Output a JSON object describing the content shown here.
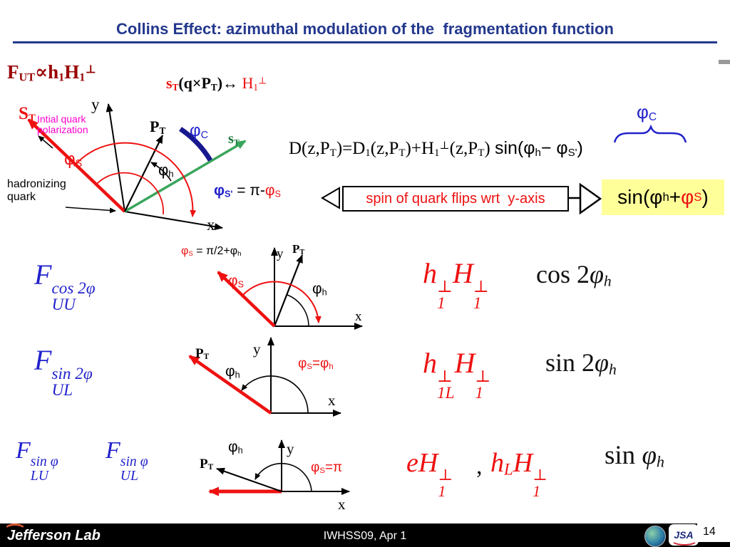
{
  "colors": {
    "navy": "#23388d",
    "red": "#ee1111",
    "dark_red": "#990000",
    "magenta": "#ff00cc",
    "green": "#1e7a3c",
    "blue": "#2222cc",
    "yellow_bg": "#ffff99"
  },
  "title": "Collins Effect: azimuthal modulation of the  fragmentation function",
  "header": {
    "fut": [
      {
        "t": "F"
      },
      {
        "t": "UT",
        "k": "sub"
      },
      {
        "t": "∝"
      },
      {
        "t": "h"
      },
      {
        "t": "1",
        "k": "sub"
      },
      {
        "t": "H"
      },
      {
        "t": "1",
        "k": "sub"
      },
      {
        "t": "⊥",
        "k": "sup"
      }
    ],
    "st_rel": [
      {
        "t": "s",
        "c": "#ee1111"
      },
      {
        "t": "T",
        "k": "sub",
        "c": "#ee1111"
      },
      {
        "t": "(q×P"
      },
      {
        "t": "T",
        "k": "sub"
      },
      {
        "t": ")↔ "
      },
      {
        "t": "H",
        "c": "#ee1111",
        "b": 0
      },
      {
        "t": "1",
        "k": "sub",
        "c": "#ee1111",
        "b": 0
      },
      {
        "t": "⊥",
        "k": "sup",
        "c": "#ee1111",
        "b": 0
      }
    ]
  },
  "main": {
    "st": [
      {
        "t": "S"
      },
      {
        "t": "T",
        "k": "sub"
      }
    ],
    "note": "Intial quark polarization",
    "y": "y",
    "x": "x",
    "pt": [
      {
        "t": "P"
      },
      {
        "t": "T",
        "k": "sub"
      }
    ],
    "phi_c": [
      {
        "t": "φ"
      },
      {
        "t": "C",
        "k": "sub"
      }
    ],
    "st_green": [
      {
        "t": "s"
      },
      {
        "t": "T",
        "k": "sub"
      }
    ],
    "phi_s": [
      {
        "t": "φ"
      },
      {
        "t": "S",
        "k": "sub"
      }
    ],
    "phi_h": [
      {
        "t": "φ"
      },
      {
        "t": "h",
        "k": "sub"
      }
    ],
    "hadronizing": "hadronizing quark",
    "phi_s_prime": [
      {
        "t": "φ",
        "c": "#2222cc",
        "b": 1
      },
      {
        "t": "S'",
        "k": "sub",
        "c": "#2222cc",
        "b": 1
      },
      {
        "t": " = π-",
        "c": "#000000"
      },
      {
        "t": "φ",
        "c": "#ee1111"
      },
      {
        "t": "S",
        "k": "sub",
        "c": "#ee1111"
      }
    ]
  },
  "equation": [
    {
      "t": "D(z,P"
    },
    {
      "t": "T",
      "k": "sub"
    },
    {
      "t": ")=D"
    },
    {
      "t": "1",
      "k": "sub"
    },
    {
      "t": "(z,P"
    },
    {
      "t": "T",
      "k": "sub"
    },
    {
      "t": ")+H"
    },
    {
      "t": "1",
      "k": "sub"
    },
    {
      "t": "⊥",
      "k": "sup"
    },
    {
      "t": "(z,P"
    },
    {
      "t": "T",
      "k": "sub"
    },
    {
      "t": ") "
    },
    {
      "t": "sin(φ",
      "f": "sans"
    },
    {
      "t": "h",
      "k": "sub",
      "f": "sans"
    },
    {
      "t": "− ",
      "f": "sans"
    },
    {
      "t": "φ",
      "f": "sans"
    },
    {
      "t": "S'",
      "k": "sub",
      "f": "sans"
    },
    {
      "t": ")",
      "f": "sans"
    }
  ],
  "phi_c_top": [
    {
      "t": "φ"
    },
    {
      "t": "C",
      "k": "sub"
    }
  ],
  "callout": {
    "box": "spin of quark flips wrt  y-axis",
    "result": [
      {
        "t": "sin(φ"
      },
      {
        "t": "h",
        "k": "sub"
      },
      {
        "t": "+"
      },
      {
        "t": "φ",
        "c": "#ee1111"
      },
      {
        "t": "S",
        "k": "sub",
        "c": "#ee1111"
      },
      {
        "t": ")"
      }
    ]
  },
  "rows": [
    {
      "f": [
        {
          "t": "F"
        },
        {
          "t": "cos 2φ|UU",
          "k": "ss"
        }
      ],
      "rel": [
        {
          "t": "φ",
          "c": "#ee1111"
        },
        {
          "t": "S",
          "k": "sub",
          "c": "#ee1111"
        },
        {
          "t": " = π/2+φ"
        },
        {
          "t": "h",
          "k": "sub"
        }
      ],
      "y": "y",
      "x": "x",
      "pt": [
        {
          "t": "P"
        },
        {
          "t": "T",
          "k": "sub"
        }
      ],
      "phi_s": [
        {
          "t": "φ"
        },
        {
          "t": "S",
          "k": "sub"
        }
      ],
      "phi_h": [
        {
          "t": "φ"
        },
        {
          "t": "h",
          "k": "sub"
        }
      ],
      "rhs": [
        {
          "t": "h"
        },
        {
          "t": "⊥|1",
          "k": "ss"
        },
        {
          "t": "H"
        },
        {
          "t": "⊥|1",
          "k": "ss"
        }
      ],
      "trig": [
        {
          "t": "cos 2",
          "i": 0
        },
        {
          "t": "φ"
        },
        {
          "t": "h",
          "k": "sub"
        }
      ]
    },
    {
      "f": [
        {
          "t": "F"
        },
        {
          "t": "sin 2φ|UL",
          "k": "ss"
        }
      ],
      "y": "y",
      "x": "x",
      "pt": [
        {
          "t": "P"
        },
        {
          "t": "T",
          "k": "sub"
        }
      ],
      "phi_h": [
        {
          "t": "φ"
        },
        {
          "t": "h",
          "k": "sub"
        }
      ],
      "phi_s_eq": [
        {
          "t": "φ"
        },
        {
          "t": "S",
          "k": "sub"
        },
        {
          "t": "="
        },
        {
          "t": "φ"
        },
        {
          "t": "h",
          "k": "sub"
        }
      ],
      "rhs": [
        {
          "t": "h"
        },
        {
          "t": "⊥|1L",
          "k": "ss"
        },
        {
          "t": "H"
        },
        {
          "t": "⊥|1",
          "k": "ss"
        }
      ],
      "trig": [
        {
          "t": "sin 2",
          "i": 0
        },
        {
          "t": "φ"
        },
        {
          "t": "h",
          "k": "sub"
        }
      ]
    },
    {
      "f1": [
        {
          "t": "F"
        },
        {
          "t": "sin φ|LU",
          "k": "ss"
        }
      ],
      "f2": [
        {
          "t": "F"
        },
        {
          "t": "sin φ|UL",
          "k": "ss"
        }
      ],
      "y": "y",
      "x": "x",
      "pt": [
        {
          "t": "P"
        },
        {
          "t": "T",
          "k": "sub"
        }
      ],
      "phi_h": [
        {
          "t": "φ"
        },
        {
          "t": "h",
          "k": "sub"
        }
      ],
      "phi_s_eq": [
        {
          "t": "φ"
        },
        {
          "t": "S",
          "k": "sub"
        },
        {
          "t": "=π"
        }
      ],
      "rhs1": [
        {
          "t": "e"
        },
        {
          "t": "H"
        },
        {
          "t": "⊥|1",
          "k": "ss"
        }
      ],
      "comma": ",",
      "rhs2": [
        {
          "t": "h"
        },
        {
          "t": "L",
          "k": "sub"
        },
        {
          "t": "H"
        },
        {
          "t": "⊥|1",
          "k": "ss"
        }
      ],
      "trig": [
        {
          "t": "sin ",
          "i": 0
        },
        {
          "t": "φ"
        },
        {
          "t": "h",
          "k": "sub"
        }
      ]
    }
  ],
  "footer": {
    "center": "IWHSS09, Apr 1",
    "logo": "Jefferson Lab",
    "jsa": "JSA",
    "page": "14"
  }
}
